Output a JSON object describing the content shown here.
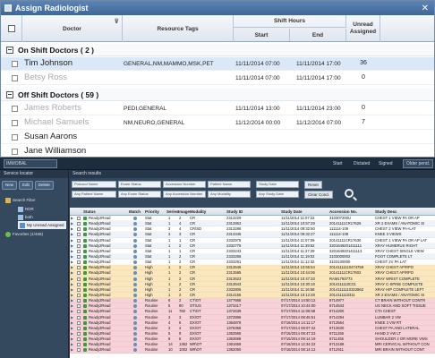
{
  "dialog": {
    "title": "Assign Radiologist",
    "close_glyph": "✕",
    "headers": {
      "doctor": "Doctor",
      "resource_tags": "Resource Tags",
      "shift_hours": "Shift Hours",
      "start": "Start",
      "end": "End",
      "unread_assigned": "Unread Assigned"
    },
    "on_shift": {
      "label": "On Shift Doctors ( 2 )",
      "rows": [
        {
          "name": "Tim Johnson",
          "tags": "GENERAL,NM,MAMMO,MSK,PET",
          "start": "11/11/2014 07:00",
          "end": "11/11/2014 17:00",
          "unread": "36",
          "selected": true,
          "dim": false
        },
        {
          "name": "Betsy Ross",
          "tags": "",
          "start": "11/11/2014 07:00",
          "end": "11/11/2014 17:00",
          "unread": "0",
          "selected": false,
          "dim": true
        }
      ]
    },
    "off_shift": {
      "label": "Off Shift Doctors ( 59 )",
      "rows": [
        {
          "name": "James Roberts",
          "tags": "PEDI,GENERAL",
          "start": "11/11/2014 13:00",
          "end": "11/11/2014 23:00",
          "unread": "0",
          "selected": false,
          "dim": true
        },
        {
          "name": "Michael Samuels",
          "tags": "NM,NEURO,GENERAL",
          "start": "11/12/2014 00:00",
          "end": "11/12/2014 07:00",
          "unread": "7",
          "selected": false,
          "dim": true
        },
        {
          "name": "Susan Aarons",
          "tags": "",
          "start": "",
          "end": "",
          "unread": "",
          "selected": false,
          "dim": false
        },
        {
          "name": "Jane Williamson",
          "tags": "",
          "start": "",
          "end": "",
          "unread": "",
          "selected": false,
          "dim": false
        }
      ]
    }
  },
  "toolbar": {
    "select_value": "IMMOBAL",
    "start": "Start",
    "dictated": "Dictated",
    "signed": "Signed",
    "older_pend": "Older pend."
  },
  "service_locator": {
    "title": "Service locator",
    "buttons": [
      "New",
      "Edit",
      "Delete"
    ],
    "tree": [
      "Search Filter",
      "RDR",
      "both",
      "My Unread Assigned",
      "Favorites (1/468)"
    ]
  },
  "search": {
    "title": "Search results",
    "filters_row1": [
      "Protocol Name",
      "Exam Status",
      "Accession Number",
      "Patient Name",
      "Study Date"
    ],
    "filters_row2": [
      "Any Patient Name",
      "Any Exam Status",
      "Any Accession Number",
      "Any Modality",
      "Any Study Date"
    ],
    "reset": "Reset",
    "clear_cond": "Clear Cond."
  },
  "grid": {
    "headers": [
      "Status",
      "Match",
      "Priority",
      "Series",
      "Image",
      "Modality",
      "Study ID",
      "Study Date",
      "Accession No.",
      "Study Desc"
    ],
    "rows": [
      {
        "status": "Ready2Read",
        "priority": "Stat",
        "series": "1",
        "image": "2",
        "modality": "CR",
        "study_id": "2313229",
        "date": "11/11/2014 11:07:22",
        "acc": "310307200U",
        "desc": "CHEST 1 VIEW PA OR AP",
        "type": "stat"
      },
      {
        "status": "Ready2Read",
        "priority": "Stat",
        "series": "1",
        "image": "4",
        "modality": "CR",
        "study_id": "2312863",
        "date": "11/11/2014 10:57:29",
        "acc": "20141111CR17626",
        "desc": "XR 2 EXAMS / ANATOMIC SI",
        "type": "stat"
      },
      {
        "status": "Ready2Read",
        "priority": "Stat",
        "series": "3",
        "image": "4",
        "modality": "CR\\SD",
        "study_id": "2313286",
        "date": "11/11/2014 09:32:50",
        "acc": "111114-109",
        "desc": "CHEST 2 VIEW PA+LAT",
        "type": "stat"
      },
      {
        "status": "Ready2Read",
        "priority": "Stat",
        "series": "3",
        "image": "3",
        "modality": "CR",
        "study_id": "2313345",
        "date": "11/11/2014 09:32:27",
        "acc": "111114-108",
        "desc": "KNEE 3 VIEWS",
        "type": "stat"
      },
      {
        "status": "Ready2Read",
        "priority": "Stat",
        "series": "1",
        "image": "1",
        "modality": "CR",
        "study_id": "2332975",
        "date": "11/11/2014 11:07:09",
        "acc": "20141111CR17630",
        "desc": "CHEST 1 VIEW PA OR AP LAT",
        "type": "stat"
      },
      {
        "status": "Ready2Read",
        "priority": "Stat",
        "series": "1",
        "image": "2",
        "modality": "CR",
        "study_id": "2332775",
        "date": "11/11/2014 11:39:52",
        "acc": "3201649201411111",
        "desc": "XRAY HUMERUS RIGHT",
        "type": "stat"
      },
      {
        "status": "Ready2Read",
        "priority": "Stat",
        "series": "1",
        "image": "1",
        "modality": "CR",
        "study_id": "2333243",
        "date": "11/11/2014 11:27:29",
        "acc": "3201649201411113",
        "desc": "XRAY CHEST SINGLE VIEW",
        "type": "stat"
      },
      {
        "status": "Ready2Read",
        "priority": "Stat",
        "series": "1",
        "image": "2",
        "modality": "CR",
        "study_id": "2333266",
        "date": "11/11/2014 11:19:02",
        "acc": "3103000002",
        "desc": "FOOT COMPLETE LT",
        "type": "stat"
      },
      {
        "status": "Ready2Read",
        "priority": "Stat",
        "series": "1",
        "image": "2",
        "modality": "CR",
        "study_id": "2333291",
        "date": "11/11/2014 11:12:32",
        "acc": "3103100000",
        "desc": "CHEST 2V PA LAT",
        "type": "stat"
      },
      {
        "status": "Ready2Read",
        "priority": "High",
        "series": "1",
        "image": "2",
        "modality": "CR",
        "study_id": "2313546",
        "date": "11/11/2014 10:55:54",
        "acc": "20141111110474759",
        "desc": "XRAY CHEST AP/RPO",
        "type": "high"
      },
      {
        "status": "Ready2Read",
        "priority": "High",
        "series": "1",
        "image": "2",
        "modality": "CR",
        "study_id": "2313595",
        "date": "11/11/2014 10:44:06",
        "acc": "20141111CR17602",
        "desc": "XRAY CHEST AP/RPO",
        "type": "high"
      },
      {
        "status": "Ready2Read",
        "priority": "High",
        "series": "1",
        "image": "2",
        "modality": "CR",
        "study_id": "2313623",
        "date": "11/11/2014 10:47:33",
        "acc": "RAM1793773",
        "desc": "XRAY WRIST COMPLETE",
        "type": "high"
      },
      {
        "status": "Ready2Read",
        "priority": "High",
        "series": "1",
        "image": "2",
        "modality": "CR",
        "study_id": "2313643",
        "date": "11/11/2014 10:30:18",
        "acc": "2014111110C01",
        "desc": "XRAY C-SPINE COMPLETE",
        "type": "high"
      },
      {
        "status": "Ready2Read",
        "priority": "High",
        "series": "1",
        "image": "2",
        "modality": "CR",
        "study_id": "2332805",
        "date": "11/11/2014 11:16:58",
        "acc": "20141111110322862",
        "desc": "XRAY HIP COMPLETE LEFT",
        "type": "high"
      },
      {
        "status": "Ready2Read",
        "priority": "High",
        "series": "1",
        "image": "2",
        "modality": "CR",
        "study_id": "2314155",
        "date": "11/11/2014 10:12:28",
        "acc": "2014111110311",
        "desc": "XR 2 EXAMS / ANATOMIC SI",
        "type": "high"
      },
      {
        "status": "Ready2Read",
        "priority": "Routine",
        "series": "6",
        "image": "2",
        "modality": "CT\\OT",
        "study_id": "1377668",
        "date": "07/17/2014 14:50:12",
        "acc": "8714977",
        "desc": "CT BRAIN WITHOUT CONTR",
        "type": "routine"
      },
      {
        "status": "Ready2Read",
        "priority": "Routine",
        "series": "5",
        "image": "80",
        "modality": "OT\\US",
        "study_id": "1373417",
        "date": "07/17/2014 10:44:00",
        "acc": "8714543",
        "desc": "US NECK AND SOFT TISSUE",
        "type": "routine"
      },
      {
        "status": "Ready2Read",
        "priority": "Routine",
        "series": "11",
        "image": "760",
        "modality": "CT\\OT",
        "study_id": "1372639",
        "date": "07/17/2014 11:06:58",
        "acc": "8714200",
        "desc": "CTA CHEST",
        "type": "routine"
      },
      {
        "status": "Ready2Read",
        "priority": "Routine",
        "series": "3",
        "image": "3",
        "modality": "DX\\OT",
        "study_id": "1372896",
        "date": "07/17/2014 08:45:51",
        "acc": "8714294",
        "desc": "LUMBAR 2 VW",
        "type": "routine"
      },
      {
        "status": "Ready2Read",
        "priority": "Routine",
        "series": "4",
        "image": "6",
        "modality": "DX\\OT",
        "study_id": "1364878",
        "date": "07/16/2014 14:11:17",
        "acc": "8713564",
        "desc": "KNEE 3 VW RT",
        "type": "routine"
      },
      {
        "status": "Ready2Read",
        "priority": "Routine",
        "series": "3",
        "image": "4",
        "modality": "DX\\OT",
        "study_id": "1376358",
        "date": "07/17/2014 08:07:42",
        "acc": "8713630",
        "desc": "CHEST PA AND LATERAL",
        "type": "routine"
      },
      {
        "status": "Ready2Read",
        "priority": "Routine",
        "series": "5",
        "image": "9",
        "modality": "DX\\OT",
        "study_id": "1352565",
        "date": "07/15/2014 09:47:23",
        "acc": "8711256",
        "desc": "HAND 3 VW LT",
        "type": "routine"
      },
      {
        "status": "Ready2Read",
        "priority": "Routine",
        "series": "8",
        "image": "8",
        "modality": "DX\\OT",
        "study_id": "1353698",
        "date": "07/15/2014 09:14:19",
        "acc": "8711455",
        "desc": "SHOULDER 2 OR MORE VWS",
        "type": "routine"
      },
      {
        "status": "Ready2Read",
        "priority": "Routine",
        "series": "14",
        "image": "1362",
        "modality": "MR\\OT",
        "study_id": "1361658",
        "date": "07/16/2014 12:34:22",
        "acc": "8713188",
        "desc": "MRI CERVICAL WITHOUT CON",
        "type": "routine"
      },
      {
        "status": "Ready2Read",
        "priority": "Routine",
        "series": "10",
        "image": "1002",
        "modality": "MR\\OT",
        "study_id": "1362050",
        "date": "07/16/2014 08:14:12",
        "acc": "8712911",
        "desc": "MRI BRAIN WITHOUT CONT",
        "type": "routine"
      }
    ]
  }
}
